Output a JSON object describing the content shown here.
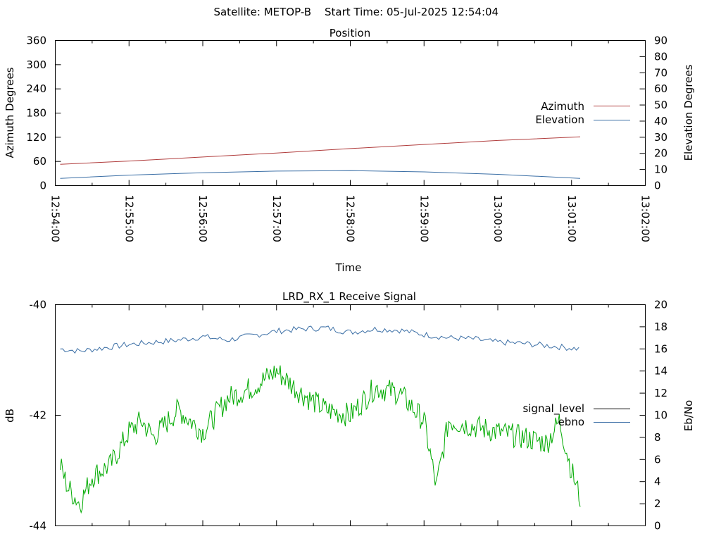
{
  "header": {
    "satellite": "Satellite: METOP-B",
    "start_time": "Start Time: 05-Jul-2025 12:54:04"
  },
  "colors": {
    "azimuth": "#b03c3c",
    "elevation": "#3a6ea5",
    "signal_level": "#000000",
    "ebno_legend": "#3a6ea5",
    "ebno_line": "#3a6ea5",
    "signal_trace": "#00aa00"
  },
  "chart_data": [
    {
      "type": "line",
      "title": "Position",
      "xlabel": "Time",
      "ylabel": "Azimuth Degrees",
      "y2label": "Elevation Degrees",
      "ylim": [
        0,
        360
      ],
      "y2lim": [
        0,
        90
      ],
      "yticks": [
        "0",
        "60",
        "120",
        "180",
        "240",
        "300",
        "360"
      ],
      "y2ticks": [
        "0",
        "10",
        "20",
        "30",
        "40",
        "50",
        "60",
        "70",
        "80",
        "90"
      ],
      "xticks": [
        "12:54:00",
        "12:55:00",
        "12:56:00",
        "12:57:00",
        "12:58:00",
        "12:59:00",
        "13:00:00",
        "13:01:00",
        "13:02:00"
      ],
      "xlim": [
        "12:54:00",
        "13:02:00"
      ],
      "legend_position": "right",
      "series": [
        {
          "name": "Azimuth",
          "axis": "left",
          "x": [
            "12:54:04",
            "12:55:00",
            "12:56:00",
            "12:57:00",
            "12:58:00",
            "12:59:00",
            "13:00:00",
            "13:01:07"
          ],
          "values": [
            53,
            61,
            71,
            81,
            92,
            102,
            112,
            121
          ]
        },
        {
          "name": "Elevation",
          "axis": "right",
          "x": [
            "12:54:04",
            "12:55:00",
            "12:56:00",
            "12:57:00",
            "12:58:00",
            "12:59:00",
            "13:00:00",
            "13:01:07"
          ],
          "values": [
            4.5,
            6.5,
            8,
            9,
            9.3,
            8.5,
            7,
            4.5
          ]
        }
      ]
    },
    {
      "type": "line",
      "title": "LRD_RX_1 Receive Signal",
      "ylabel": "dB",
      "y2label": "Eb/No",
      "ylim": [
        -44,
        -40
      ],
      "y2lim": [
        0,
        20
      ],
      "yticks": [
        "-44",
        "-42",
        "-40"
      ],
      "y2ticks": [
        "0",
        "2",
        "4",
        "6",
        "8",
        "10",
        "12",
        "14",
        "16",
        "18",
        "20"
      ],
      "xlim": [
        "12:54:00",
        "13:02:00"
      ],
      "legend_position": "right",
      "series": [
        {
          "name": "signal_level",
          "axis": "left",
          "values": []
        },
        {
          "name": "ebno",
          "axis": "right",
          "x": [
            "12:54:04",
            "12:54:20",
            "12:54:40",
            "12:55:00",
            "12:55:20",
            "12:55:40",
            "12:56:00",
            "12:56:20",
            "12:56:40",
            "12:57:00",
            "12:57:20",
            "12:57:40",
            "12:58:00",
            "12:58:20",
            "12:58:40",
            "12:59:00",
            "12:59:20",
            "12:59:40",
            "13:00:00",
            "13:00:20",
            "13:00:40",
            "13:01:07"
          ],
          "values": [
            16.0,
            15.8,
            16.1,
            16.4,
            16.6,
            16.8,
            17.1,
            16.8,
            17.2,
            17.6,
            17.8,
            17.9,
            17.5,
            17.8,
            17.7,
            17.3,
            17.0,
            16.9,
            16.6,
            16.5,
            16.3,
            16.0
          ]
        },
        {
          "axis": "right",
          "x": [
            "12:54:04",
            "12:54:10",
            "12:54:20",
            "12:54:30",
            "12:54:45",
            "12:55:00",
            "12:55:10",
            "12:55:20",
            "12:55:40",
            "12:56:00",
            "12:56:20",
            "12:56:40",
            "12:57:00",
            "12:57:20",
            "12:57:40",
            "12:58:00",
            "12:58:20",
            "12:58:40",
            "12:59:00",
            "12:59:10",
            "12:59:20",
            "12:59:40",
            "13:00:00",
            "13:00:20",
            "13:00:40",
            "13:00:50",
            "13:01:00",
            "13:01:07"
          ],
          "values": [
            5.5,
            3.5,
            2.0,
            4.5,
            5.5,
            8.5,
            9.5,
            8.0,
            10.5,
            8.5,
            11.5,
            12.5,
            14.0,
            12.0,
            10.5,
            10.0,
            12.5,
            12.0,
            9.5,
            3.5,
            9.5,
            9.0,
            8.5,
            8.0,
            7.5,
            9.5,
            5.0,
            2.5
          ]
        }
      ]
    }
  ]
}
